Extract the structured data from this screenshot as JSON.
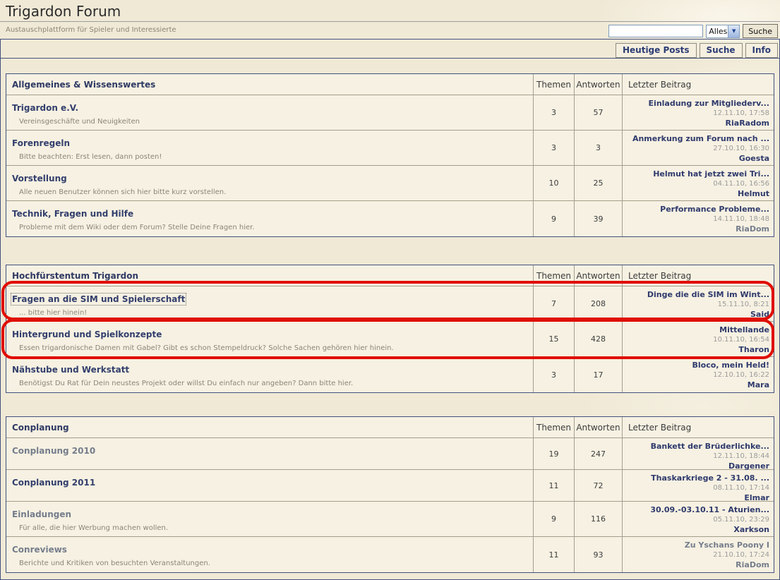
{
  "page": {
    "title": "Trigardon Forum",
    "subtitle": "Austauschplattform für Spieler und Interessierte"
  },
  "search": {
    "input_value": "",
    "filter_value": "Alles",
    "button_label": "Suche",
    "arrow_icon": "▼"
  },
  "navbar": {
    "buttons": [
      "Heutige Posts",
      "Suche",
      "Info"
    ]
  },
  "columns": {
    "themen": "Themen",
    "antworten": "Antworten",
    "letzter": "Letzter Beitrag"
  },
  "colors": {
    "accent_navy": "#2f3a64",
    "link_navy": "#333f6d",
    "muted_slate": "#757d8c",
    "annotation_red": "#e00d00",
    "page_cream": "#f0e9d6",
    "row_cream": "#f6f1e2"
  },
  "annotations": [
    {
      "shape": "red-rounded-box",
      "marks": "Fragen an die SIM und Spielerschaft row"
    },
    {
      "shape": "red-rounded-box",
      "marks": "Hintergrund und Spielkonzepte row"
    }
  ],
  "sections": [
    {
      "title": "Allgemeines & Wissenswertes",
      "forums": [
        {
          "name": "Trigardon e.V.",
          "desc": "Vereinsgeschäfte und Neuigkeiten",
          "topics": "3",
          "replies": "57",
          "last": {
            "title": "Einladung zur Mitgliederv...",
            "date": "12.11.10, 17:58",
            "author": "RiaRadom"
          }
        },
        {
          "name": "Forenregeln",
          "desc": "Bitte beachten: Erst lesen, dann posten!",
          "topics": "3",
          "replies": "3",
          "last": {
            "title": "Anmerkung zum Forum nach ...",
            "date": "27.10.10, 16:30",
            "author": "Goesta"
          }
        },
        {
          "name": "Vorstellung",
          "desc": "Alle neuen Benutzer können sich hier bitte kurz vorstellen.",
          "topics": "10",
          "replies": "25",
          "last": {
            "title": "Helmut hat jetzt zwei Tri...",
            "date": "04.11.10, 16:56",
            "author": "Helmut"
          }
        },
        {
          "name": "Technik, Fragen und Hilfe",
          "desc": "Probleme mit dem Wiki oder dem Forum? Stelle Deine Fragen hier.",
          "topics": "9",
          "replies": "39",
          "last": {
            "title": "Performance Probleme...",
            "date": "14.11.10, 18:48",
            "author": "RiaDom"
          },
          "author_muted": true
        }
      ]
    },
    {
      "title": "Hochfürstentum Trigardon",
      "forums": [
        {
          "name": "Fragen an die SIM und Spielerschaft",
          "desc": "... bitte hier hinein!",
          "topics": "7",
          "replies": "208",
          "last": {
            "title": "Dinge die die SIM im Wint...",
            "date": "15.11.10, 8:21",
            "author": "Said"
          },
          "focused": true
        },
        {
          "name": "Hintergrund und Spielkonzepte",
          "desc": "Essen trigardonische Damen mit Gabel? Gibt es schon Stempeldruck? Solche Sachen gehören hier hinein.",
          "topics": "15",
          "replies": "428",
          "last": {
            "title": "Mittellande",
            "date": "10.11.10, 16:54",
            "author": "Tharon"
          }
        },
        {
          "name": "Nähstube und Werkstatt",
          "desc": "Benötigst Du Rat für Dein neustes Projekt oder willst Du einfach nur angeben? Dann bitte hier.",
          "topics": "3",
          "replies": "17",
          "last": {
            "title": "Bloco, mein Held!",
            "date": "12.10.10, 16:22",
            "author": "Mara"
          }
        }
      ]
    },
    {
      "title": "Conplanung",
      "forums": [
        {
          "name": "Conplanung 2010",
          "desc": "",
          "topics": "19",
          "replies": "247",
          "read": true,
          "last": {
            "title": "Bankett der Brüderlichke...",
            "date": "12.11.10, 18:44",
            "author": "Dargener"
          }
        },
        {
          "name": "Conplanung 2011",
          "desc": "",
          "topics": "11",
          "replies": "72",
          "last": {
            "title": "Thaskarkriege 2 - 31.08. ...",
            "date": "08.11.10, 17:14",
            "author": "Elmar"
          }
        },
        {
          "name": "Einladungen",
          "desc": "Für alle, die hier Werbung machen wollen.",
          "topics": "9",
          "replies": "116",
          "read": true,
          "last": {
            "title": "30.09.-03.10.11 - Aturien...",
            "date": "05.11.10, 23:29",
            "author": "Xarkson"
          }
        },
        {
          "name": "Conreviews",
          "desc": "Berichte und Kritiken von besuchten Veranstaltungen.",
          "topics": "11",
          "replies": "93",
          "read": true,
          "last": {
            "title": "Zu Yschans Poony I",
            "date": "21.10.10, 17:24",
            "author": "RiaDom"
          },
          "last_muted": true,
          "author_muted": true
        }
      ]
    }
  ]
}
